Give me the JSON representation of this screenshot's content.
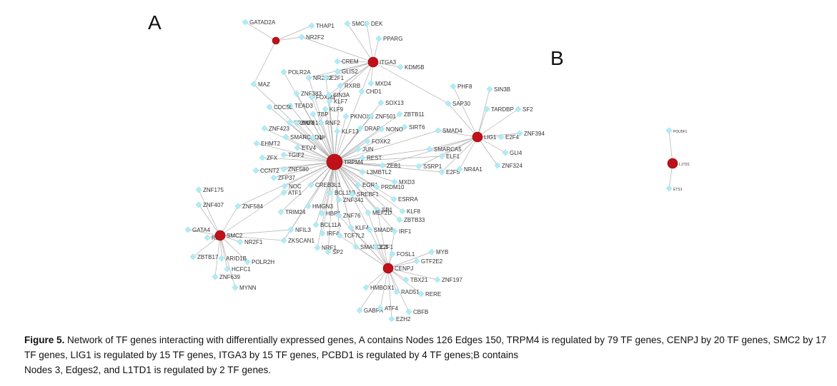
{
  "panels": {
    "a": "A",
    "b": "B"
  },
  "caption": {
    "label": "Figure 5.",
    "text": " Network of TF genes interacting with differentially expressed genes, A contains Nodes 126 Edges 150, TRPM4 is regulated by 79 TF genes, CENPJ by 20 TF genes, SMC2 by 17 TF genes, LIG1 is regulated by 15 TF genes, ITGA3 by 15 TF genes, PCBD1 is regulated by 4 TF genes;B contains",
    "line2": "Nodes 3, Edges2, and L1TD1 is regulated by 2 TF genes."
  },
  "colors": {
    "tf": "#b0ecf5",
    "hub": "#c0101a",
    "edge": "#b0b0b0"
  },
  "hubs": [
    {
      "id": "TRPM4",
      "label": "TRPM4"
    },
    {
      "id": "ITGA3",
      "label": "ITGA3"
    },
    {
      "id": "LIG1",
      "label": "LIG1"
    },
    {
      "id": "SMC2",
      "label": "SMC2"
    },
    {
      "id": "CENPJ",
      "label": "CENPJ"
    },
    {
      "id": "PCBD1",
      "label": ""
    },
    {
      "id": "L1TD1",
      "label": "L1TD1"
    }
  ],
  "tfs": [
    {
      "label": "GATAD2A",
      "t": [
        "PCBD1"
      ]
    },
    {
      "label": "THAP1",
      "t": [
        "PCBD1"
      ]
    },
    {
      "label": "SMC3",
      "t": [
        "ITGA3"
      ]
    },
    {
      "label": "DEK",
      "t": [
        "ITGA3"
      ]
    },
    {
      "label": "NR2F2",
      "t": [
        "PCBD1",
        "ITGA3"
      ]
    },
    {
      "label": "PPARG",
      "t": [
        "ITGA3"
      ]
    },
    {
      "label": "CREM",
      "t": [
        "ITGA3"
      ]
    },
    {
      "label": "KDM5B",
      "t": [
        "ITGA3"
      ]
    },
    {
      "label": "GLIS2",
      "t": [
        "ITGA3"
      ]
    },
    {
      "label": "POLR2A",
      "t": [
        "TRPM4"
      ]
    },
    {
      "label": "NR2C2",
      "t": [
        "TRPM4",
        "ITGA3"
      ]
    },
    {
      "label": "E2F1",
      "t": [
        "TRPM4",
        "ITGA3"
      ]
    },
    {
      "label": "MAZ",
      "t": [
        "TRPM4",
        "PCBD1"
      ]
    },
    {
      "label": "MXD4",
      "t": [
        "ITGA3"
      ]
    },
    {
      "label": "RXRB",
      "t": [
        "TRPM4",
        "ITGA3"
      ]
    },
    {
      "label": "CHD1",
      "t": [
        "TRPM4",
        "ITGA3"
      ]
    },
    {
      "label": "ZNF383",
      "t": [
        "TRPM4"
      ]
    },
    {
      "label": "FOXM1",
      "t": [
        "TRPM4"
      ]
    },
    {
      "label": "SIN3A",
      "t": [
        "TRPM4",
        "ITGA3"
      ]
    },
    {
      "label": "SOX13",
      "t": [
        "TRPM4"
      ]
    },
    {
      "label": "TEAD3",
      "t": [
        "TRPM4"
      ]
    },
    {
      "label": "KLF7",
      "t": [
        "TRPM4",
        "ITGA3"
      ]
    },
    {
      "label": "KLF9",
      "t": [
        "TRPM4"
      ]
    },
    {
      "label": "CDC5L",
      "t": [
        "TRPM4"
      ]
    },
    {
      "label": "TBP",
      "t": [
        "TRPM4"
      ]
    },
    {
      "label": "PKNOX1",
      "t": [
        "TRPM4"
      ]
    },
    {
      "label": "ZNF501",
      "t": [
        "TRPM4"
      ]
    },
    {
      "label": "ZBTB11",
      "t": [
        "TRPM4"
      ]
    },
    {
      "label": "TRIM28",
      "t": [
        "TRPM4"
      ]
    },
    {
      "label": "ZNF610",
      "t": [
        "TRPM4"
      ]
    },
    {
      "label": "RNF2",
      "t": [
        "TRPM4"
      ]
    },
    {
      "label": "ZNF423",
      "t": [
        "TRPM4"
      ]
    },
    {
      "label": "KLF13",
      "t": [
        "TRPM4"
      ]
    },
    {
      "label": "DRAP1",
      "t": [
        "TRPM4"
      ]
    },
    {
      "label": "NONO",
      "t": [
        "TRPM4"
      ]
    },
    {
      "label": "SIRT6",
      "t": [
        "TRPM4"
      ]
    },
    {
      "label": "SMARCAD1",
      "t": [
        "TRPM4"
      ]
    },
    {
      "label": "NP",
      "t": [
        "TRPM4"
      ]
    },
    {
      "label": "EHMT2",
      "t": [
        "TRPM4"
      ]
    },
    {
      "label": "ETV4",
      "t": [
        "TRPM4"
      ]
    },
    {
      "label": "FOXK2",
      "t": [
        "TRPM4"
      ]
    },
    {
      "label": "JUN",
      "t": [
        "TRPM4"
      ]
    },
    {
      "label": "ZFX",
      "t": [
        "TRPM4"
      ]
    },
    {
      "label": "TGIF2",
      "t": [
        "TRPM4"
      ]
    },
    {
      "label": "REST",
      "t": [
        "TRPM4"
      ]
    },
    {
      "label": "CCNT2",
      "t": [
        "TRPM4"
      ]
    },
    {
      "label": "ZNF580",
      "t": [
        "TRPM4"
      ]
    },
    {
      "label": "ZFP37",
      "t": [
        "TRPM4"
      ]
    },
    {
      "label": "ZEB1",
      "t": [
        "TRPM4",
        "LIG1"
      ]
    },
    {
      "label": "SSRP1",
      "t": [
        "TRPM4",
        "LIG1"
      ]
    },
    {
      "label": "L3MBTL2",
      "t": [
        "TRPM4"
      ]
    },
    {
      "label": "E2F5",
      "t": [
        "TRPM4",
        "LIG1"
      ]
    },
    {
      "label": "NOC",
      "t": [
        "TRPM4"
      ]
    },
    {
      "label": "CREB3L1",
      "t": [
        "TRPM4"
      ]
    },
    {
      "label": "ATF1",
      "t": [
        "TRPM4",
        "SMC2"
      ]
    },
    {
      "label": "BCL11B",
      "t": [
        "TRPM4"
      ]
    },
    {
      "label": "ZNF341",
      "t": [
        "TRPM4"
      ]
    },
    {
      "label": "SREBF1",
      "t": [
        "TRPM4"
      ]
    },
    {
      "label": "EGR1",
      "t": [
        "TRPM4"
      ]
    },
    {
      "label": "PRDM10",
      "t": [
        "TRPM4"
      ]
    },
    {
      "label": "MXD3",
      "t": [
        "TRPM4"
      ]
    },
    {
      "label": "ESRRA",
      "t": [
        "TRPM4"
      ]
    },
    {
      "label": "ZNF175",
      "t": [
        "SMC2"
      ]
    },
    {
      "label": "ZNF407",
      "t": [
        "SMC2"
      ]
    },
    {
      "label": "ZNF584",
      "t": [
        "TRPM4",
        "SMC2"
      ]
    },
    {
      "label": "TRIM24",
      "t": [
        "TRPM4"
      ]
    },
    {
      "label": "HMGN3",
      "t": [
        "TRPM4"
      ]
    },
    {
      "label": "HBP1",
      "t": [
        "TRPM4"
      ]
    },
    {
      "label": "SP1",
      "t": [
        "TRPM4",
        "CENPJ"
      ]
    },
    {
      "label": "MEF2D",
      "t": [
        "TRPM4",
        "CENPJ"
      ]
    },
    {
      "label": "KLF8",
      "t": [
        "TRPM4"
      ]
    },
    {
      "label": "ZNF76",
      "t": [
        "TRPM4",
        "CENPJ"
      ]
    },
    {
      "label": "ZBTB33",
      "t": [
        "TRPM4"
      ]
    },
    {
      "label": "BCL11A",
      "t": [
        "TRPM4"
      ]
    },
    {
      "label": "NFIL3",
      "t": [
        "TRPM4",
        "SMC2"
      ]
    },
    {
      "label": "IRF4",
      "t": [
        "TRPM4"
      ]
    },
    {
      "label": "TCF7L2",
      "t": [
        "TRPM4",
        "CENPJ"
      ]
    },
    {
      "label": "KLF4",
      "t": [
        "TRPM4",
        "CENPJ"
      ]
    },
    {
      "label": "SMAD5",
      "t": [
        "TRPM4",
        "CENPJ"
      ]
    },
    {
      "label": "IRF1",
      "t": [
        "TRPM4",
        "CENPJ"
      ]
    },
    {
      "label": "GATA4",
      "t": [
        "SMC2"
      ]
    },
    {
      "label": "RB",
      "t": [
        "SMC2"
      ]
    },
    {
      "label": "NR2F1",
      "t": [
        "SMC2"
      ]
    },
    {
      "label": "ZKSCAN1",
      "t": [
        "TRPM4",
        "SMC2"
      ]
    },
    {
      "label": "NRF1",
      "t": [
        "TRPM4"
      ]
    },
    {
      "label": "SP2",
      "t": [
        "TRPM4"
      ]
    },
    {
      "label": "SMARCC1",
      "t": [
        "TRPM4",
        "CENPJ"
      ]
    },
    {
      "label": "E2F1",
      "t": [
        "CENPJ"
      ]
    },
    {
      "label": "ZBTB17",
      "t": [
        "SMC2"
      ]
    },
    {
      "label": "ARID1B",
      "t": [
        "SMC2"
      ]
    },
    {
      "label": "POLR2H",
      "t": [
        "SMC2"
      ]
    },
    {
      "label": "HCFC1",
      "t": [
        "SMC2"
      ]
    },
    {
      "label": "ZNF639",
      "t": [
        "SMC2"
      ]
    },
    {
      "label": "MYNN",
      "t": [
        "SMC2"
      ]
    },
    {
      "label": "FOSL1",
      "t": [
        "CENPJ"
      ]
    },
    {
      "label": "MYB",
      "t": [
        "CENPJ"
      ]
    },
    {
      "label": "GTF2E2",
      "t": [
        "CENPJ"
      ]
    },
    {
      "label": "TBX21",
      "t": [
        "CENPJ"
      ]
    },
    {
      "label": "ZNF197",
      "t": [
        "CENPJ"
      ]
    },
    {
      "label": "HMBOX1",
      "t": [
        "CENPJ"
      ]
    },
    {
      "label": "RAD51",
      "t": [
        "CENPJ"
      ]
    },
    {
      "label": "RERE",
      "t": [
        "CENPJ"
      ]
    },
    {
      "label": "GABPA",
      "t": [
        "CENPJ"
      ]
    },
    {
      "label": "ATF4",
      "t": [
        "CENPJ"
      ]
    },
    {
      "label": "CBFB",
      "t": [
        "CENPJ"
      ]
    },
    {
      "label": "EZH2",
      "t": [
        "CENPJ"
      ]
    },
    {
      "label": "PHF8",
      "t": [
        "LIG1"
      ]
    },
    {
      "label": "SIN3B",
      "t": [
        "LIG1"
      ]
    },
    {
      "label": "SAP30",
      "t": [
        "LIG1",
        "ITGA3"
      ]
    },
    {
      "label": "TARDBP",
      "t": [
        "LIG1"
      ]
    },
    {
      "label": "SF2",
      "t": [
        "LIG1"
      ]
    },
    {
      "label": "SMAD4",
      "t": [
        "LIG1",
        "TRPM4"
      ]
    },
    {
      "label": "E2F4",
      "t": [
        "LIG1"
      ]
    },
    {
      "label": "ZNF394",
      "t": [
        "LIG1"
      ]
    },
    {
      "label": "SMARCA5",
      "t": [
        "LIG1",
        "TRPM4"
      ]
    },
    {
      "label": "ELF1",
      "t": [
        "LIG1",
        "TRPM4"
      ]
    },
    {
      "label": "GLI4",
      "t": [
        "LIG1"
      ]
    },
    {
      "label": "NR4A1",
      "t": [
        "LIG1"
      ]
    },
    {
      "label": "ZNF324",
      "t": [
        "LIG1"
      ]
    },
    {
      "label": "POU5F1",
      "t": [
        "L1TD1"
      ]
    },
    {
      "label": "ETS1",
      "t": [
        "L1TD1"
      ]
    }
  ]
}
